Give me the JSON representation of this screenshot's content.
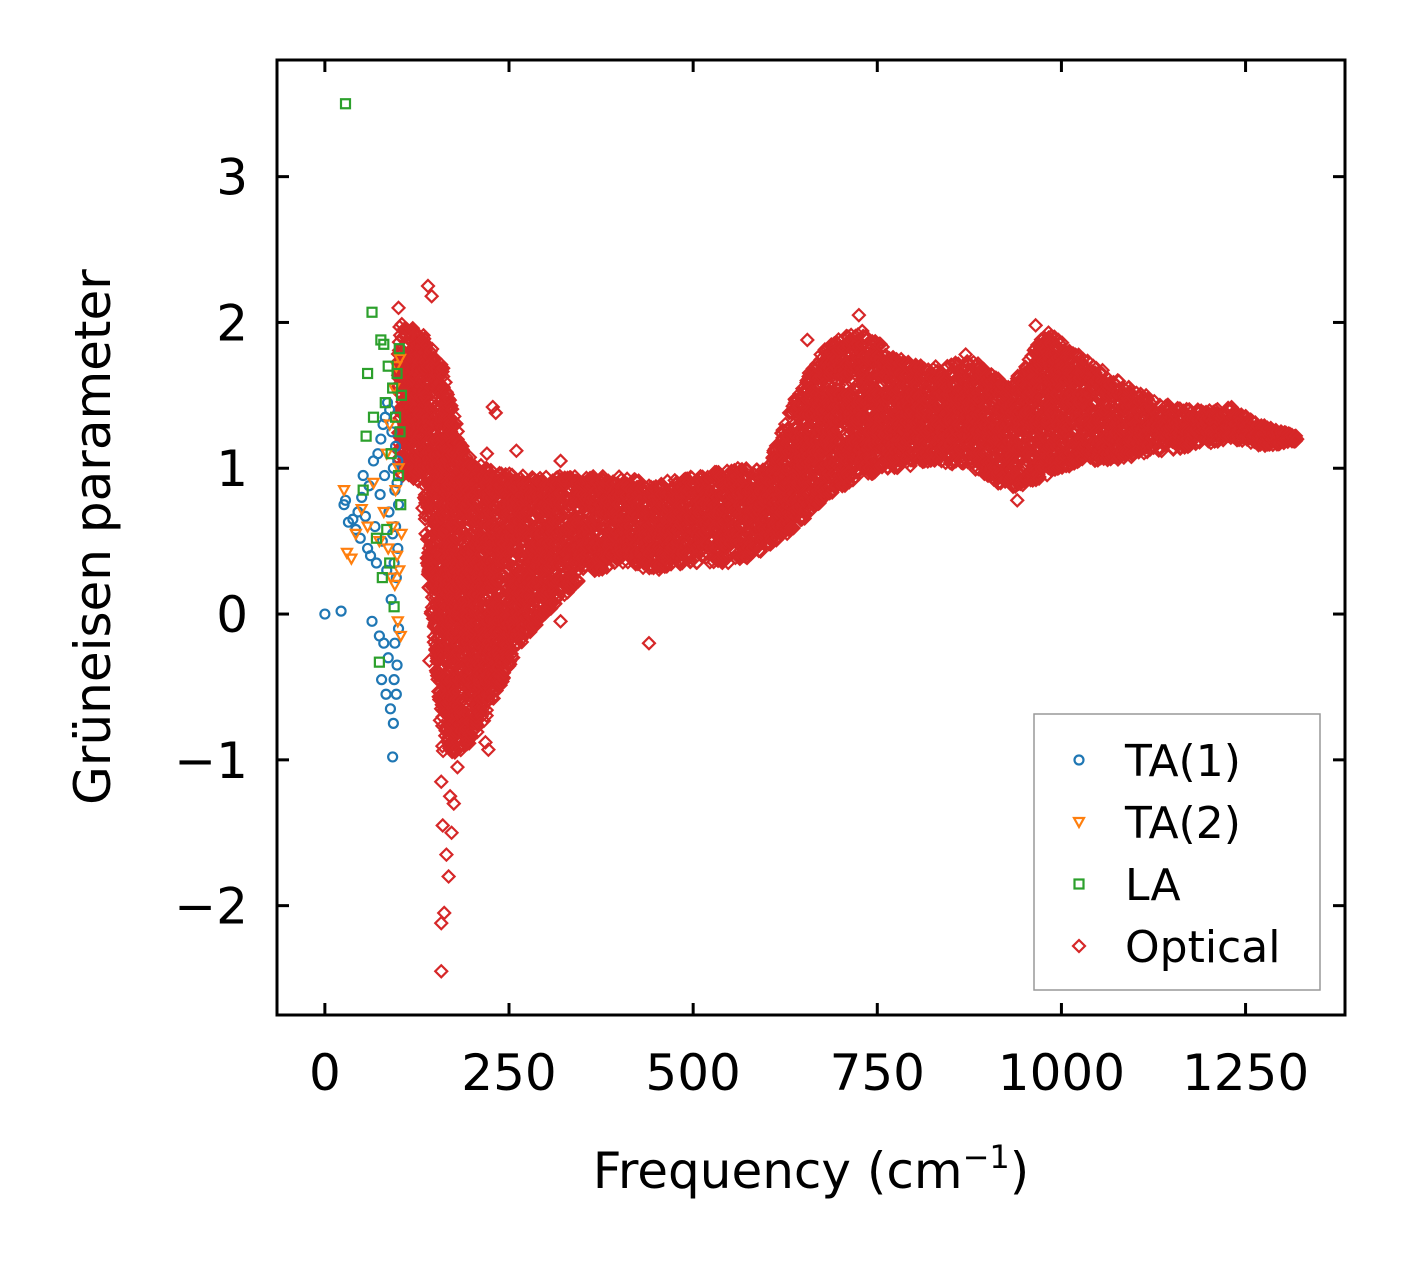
{
  "chart_data": {
    "type": "scatter",
    "title": "",
    "xlabel": "Frequency (cm",
    "xlabel_sup": "−1",
    "xlabel_close": ")",
    "ylabel": "Grüneisen parameter",
    "xlim": [
      -65,
      1385
    ],
    "ylim": [
      -2.75,
      3.8
    ],
    "x_ticks": [
      0,
      250,
      500,
      750,
      1000,
      1250
    ],
    "x_tick_labels": [
      "0",
      "250",
      "500",
      "750",
      "1000",
      "1250"
    ],
    "y_ticks": [
      -2,
      -1,
      0,
      1,
      2,
      3
    ],
    "y_tick_labels": [
      "−2",
      "−1",
      "0",
      "1",
      "2",
      "3"
    ],
    "legend_position": "lower-right",
    "grid": false,
    "series": [
      {
        "name": "TA(1)",
        "marker": "circle",
        "color": "#1f77b4",
        "points": [
          [
            0,
            0.0
          ],
          [
            22,
            0.02
          ],
          [
            26,
            0.75
          ],
          [
            28,
            0.78
          ],
          [
            32,
            0.63
          ],
          [
            38,
            0.65
          ],
          [
            42,
            0.58
          ],
          [
            45,
            0.7
          ],
          [
            48,
            0.52
          ],
          [
            50,
            0.8
          ],
          [
            52,
            0.95
          ],
          [
            55,
            0.67
          ],
          [
            58,
            0.45
          ],
          [
            60,
            0.88
          ],
          [
            62,
            0.4
          ],
          [
            64,
            -0.05
          ],
          [
            66,
            1.05
          ],
          [
            68,
            0.6
          ],
          [
            70,
            0.35
          ],
          [
            72,
            1.1
          ],
          [
            74,
            -0.15
          ],
          [
            75,
            0.82
          ],
          [
            76,
            1.2
          ],
          [
            77,
            -0.45
          ],
          [
            78,
            0.5
          ],
          [
            79,
            1.3
          ],
          [
            80,
            -0.2
          ],
          [
            81,
            0.95
          ],
          [
            82,
            1.35
          ],
          [
            83,
            -0.55
          ],
          [
            84,
            0.3
          ],
          [
            85,
            1.45
          ],
          [
            86,
            -0.3
          ],
          [
            87,
            0.7
          ],
          [
            88,
            1.4
          ],
          [
            89,
            -0.65
          ],
          [
            90,
            0.1
          ],
          [
            91,
            1.25
          ],
          [
            92,
            -0.98
          ],
          [
            92,
            0.55
          ],
          [
            93,
            -0.75
          ],
          [
            93,
            1.0
          ],
          [
            94,
            -0.45
          ],
          [
            94,
            0.35
          ],
          [
            95,
            0.85
          ],
          [
            95,
            -0.2
          ],
          [
            96,
            1.15
          ],
          [
            96,
            0.6
          ],
          [
            97,
            0.25
          ],
          [
            97,
            -0.55
          ],
          [
            98,
            0.9
          ],
          [
            98,
            -0.35
          ],
          [
            99,
            0.45
          ],
          [
            99,
            1.05
          ],
          [
            100,
            -0.1
          ],
          [
            100,
            0.75
          ]
        ]
      },
      {
        "name": "TA(2)",
        "marker": "triangle-down",
        "color": "#ff7f0e",
        "points": [
          [
            26,
            0.85
          ],
          [
            30,
            0.42
          ],
          [
            36,
            0.38
          ],
          [
            42,
            0.55
          ],
          [
            50,
            0.72
          ],
          [
            58,
            0.6
          ],
          [
            66,
            0.9
          ],
          [
            74,
            0.5
          ],
          [
            80,
            0.7
          ],
          [
            84,
            1.1
          ],
          [
            86,
            0.45
          ],
          [
            88,
            1.3
          ],
          [
            90,
            0.25
          ],
          [
            92,
            0.6
          ],
          [
            94,
            1.55
          ],
          [
            95,
            0.2
          ],
          [
            96,
            0.85
          ],
          [
            97,
            1.7
          ],
          [
            98,
            0.4
          ],
          [
            99,
            -0.05
          ],
          [
            100,
            1.0
          ],
          [
            101,
            0.3
          ],
          [
            102,
            1.75
          ],
          [
            103,
            -0.15
          ],
          [
            104,
            0.55
          ]
        ]
      },
      {
        "name": "LA",
        "marker": "square",
        "color": "#2ca02c",
        "points": [
          [
            28,
            3.5
          ],
          [
            52,
            0.85
          ],
          [
            56,
            1.22
          ],
          [
            58,
            1.65
          ],
          [
            64,
            2.07
          ],
          [
            66,
            1.35
          ],
          [
            70,
            0.52
          ],
          [
            74,
            -0.33
          ],
          [
            76,
            1.88
          ],
          [
            78,
            0.25
          ],
          [
            80,
            1.85
          ],
          [
            82,
            1.45
          ],
          [
            84,
            0.58
          ],
          [
            86,
            1.7
          ],
          [
            88,
            0.35
          ],
          [
            90,
            1.1
          ],
          [
            92,
            1.55
          ],
          [
            94,
            0.05
          ],
          [
            96,
            1.35
          ],
          [
            98,
            1.65
          ],
          [
            100,
            0.95
          ],
          [
            101,
            1.82
          ],
          [
            102,
            1.25
          ],
          [
            103,
            0.75
          ],
          [
            104,
            1.5
          ]
        ]
      },
      {
        "name": "Optical",
        "marker": "diamond",
        "color": "#d62728",
        "envelope": [
          [
            100,
            0.95,
            2.0
          ],
          [
            130,
            0.9,
            1.95
          ],
          [
            160,
            -0.95,
            1.7
          ],
          [
            190,
            -0.95,
            1.1
          ],
          [
            220,
            -0.7,
            1.0
          ],
          [
            260,
            -0.25,
            0.95
          ],
          [
            300,
            0.0,
            0.95
          ],
          [
            350,
            0.25,
            0.95
          ],
          [
            400,
            0.35,
            0.95
          ],
          [
            450,
            0.3,
            0.9
          ],
          [
            500,
            0.35,
            0.95
          ],
          [
            560,
            0.35,
            1.0
          ],
          [
            600,
            0.45,
            1.0
          ],
          [
            640,
            0.6,
            1.5
          ],
          [
            680,
            0.8,
            1.85
          ],
          [
            730,
            0.95,
            1.95
          ],
          [
            780,
            1.0,
            1.75
          ],
          [
            830,
            1.05,
            1.7
          ],
          [
            880,
            1.0,
            1.75
          ],
          [
            930,
            0.85,
            1.55
          ],
          [
            980,
            0.95,
            1.95
          ],
          [
            1030,
            1.05,
            1.75
          ],
          [
            1080,
            1.05,
            1.6
          ],
          [
            1130,
            1.1,
            1.45
          ],
          [
            1180,
            1.15,
            1.4
          ],
          [
            1230,
            1.2,
            1.42
          ],
          [
            1270,
            1.15,
            1.3
          ],
          [
            1320,
            1.18,
            1.22
          ]
        ],
        "points": [
          [
            100,
            2.1
          ],
          [
            140,
            2.25
          ],
          [
            145,
            2.18
          ],
          [
            150,
            1.75
          ],
          [
            142,
            -0.32
          ],
          [
            152,
            -0.4
          ],
          [
            158,
            -1.15
          ],
          [
            160,
            -1.45
          ],
          [
            162,
            -2.05
          ],
          [
            158,
            -2.12
          ],
          [
            158,
            -2.45
          ],
          [
            165,
            -1.65
          ],
          [
            168,
            -1.8
          ],
          [
            170,
            -1.25
          ],
          [
            175,
            -1.3
          ],
          [
            180,
            -1.05
          ],
          [
            164,
            -0.8
          ],
          [
            172,
            -1.5
          ],
          [
            228,
            1.42
          ],
          [
            232,
            1.38
          ],
          [
            222,
            -0.93
          ],
          [
            218,
            -0.88
          ],
          [
            220,
            1.1
          ],
          [
            260,
            1.12
          ],
          [
            320,
            1.05
          ],
          [
            440,
            -0.2
          ],
          [
            320,
            -0.05
          ],
          [
            655,
            1.88
          ],
          [
            725,
            2.05
          ],
          [
            965,
            1.98
          ],
          [
            990,
            1.0
          ],
          [
            870,
            1.78
          ],
          [
            940,
            0.78
          ],
          [
            1115,
            1.5
          ],
          [
            1230,
            1.4
          ],
          [
            1320,
            1.2
          ]
        ]
      }
    ]
  }
}
